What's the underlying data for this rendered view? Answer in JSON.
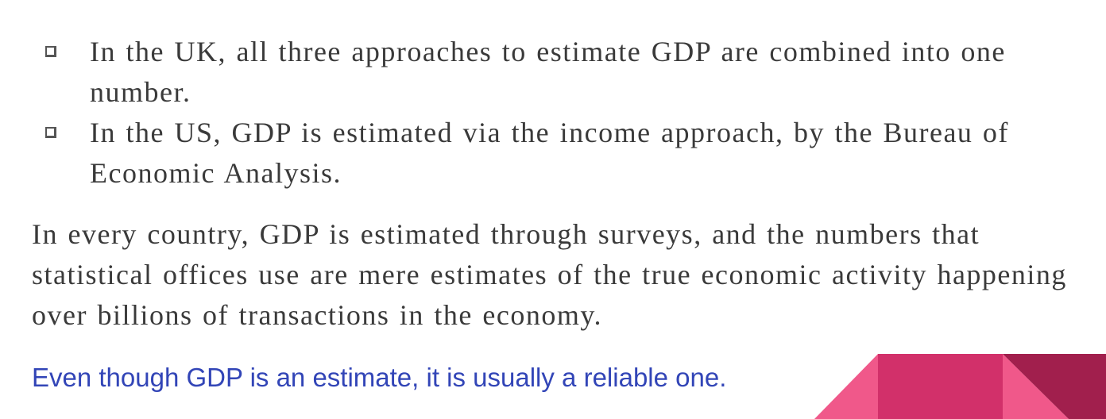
{
  "bullets": [
    {
      "text": "In the UK, all three approaches to estimate GDP are combined into one number."
    },
    {
      "text": "In the US, GDP is estimated via the income approach, by the Bureau of Economic Analysis."
    }
  ],
  "paragraph": "In every country, GDP is estimated through surveys, and the numbers that statistical offices use are mere estimates of the true economic activity happening over billions of transactions in the economy.",
  "highlight": "Even though GDP is an estimate, it is usually a reliable one.",
  "colors": {
    "highlight_text": "#3245b7",
    "body_text": "#3a3a3a",
    "deco_pink": "#f0588a",
    "deco_crimson": "#d2306a",
    "deco_maroon": "#a11f4d"
  }
}
